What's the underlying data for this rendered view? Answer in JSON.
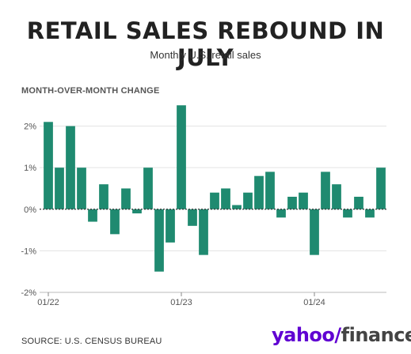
{
  "header": {
    "title": "RETAIL SALES REBOUND IN JULY",
    "subtitle": "Monthly U.S. retail sales"
  },
  "footer": {
    "source": "SOURCE: U.S. CENSUS BUREAU",
    "logo": "yahoo!finance"
  },
  "colors": {
    "bar": "#1f8a70",
    "grid": "#e3e3e3",
    "zero_line": "#333333"
  },
  "chart_data": {
    "type": "bar",
    "title": "RETAIL SALES REBOUND IN JULY",
    "subtitle": "Monthly U.S. retail sales",
    "ylabel": "MONTH-OVER-MONTH CHANGE",
    "xlabel": "",
    "categories": [
      "2022-01",
      "2022-02",
      "2022-03",
      "2022-04",
      "2022-05",
      "2022-06",
      "2022-07",
      "2022-08",
      "2022-09",
      "2022-10",
      "2022-11",
      "2022-12",
      "2023-01",
      "2023-02",
      "2023-03",
      "2023-04",
      "2023-05",
      "2023-06",
      "2023-07",
      "2023-08",
      "2023-09",
      "2023-10",
      "2023-11",
      "2023-12",
      "2024-01",
      "2024-02",
      "2024-03",
      "2024-04",
      "2024-05",
      "2024-06",
      "2024-07"
    ],
    "values": [
      2.1,
      1.0,
      2.0,
      1.0,
      -0.3,
      0.6,
      -0.6,
      0.5,
      -0.1,
      1.0,
      -1.5,
      -0.8,
      2.5,
      -0.4,
      -1.1,
      0.4,
      0.5,
      0.1,
      0.4,
      0.8,
      0.9,
      -0.2,
      0.3,
      0.4,
      -1.1,
      0.9,
      0.6,
      -0.2,
      0.3,
      -0.2,
      1.0
    ],
    "ylim": [
      -2,
      2.6
    ],
    "yticks": [
      -2,
      -1,
      0,
      1,
      2
    ],
    "ytick_labels": [
      "-2%",
      "-1%",
      "0%",
      "1%",
      "2%"
    ],
    "xticks": [
      "2022-01",
      "2023-01",
      "2024-01"
    ],
    "xtick_labels": [
      "01/22",
      "01/23",
      "01/24"
    ],
    "grid": true,
    "legend": "none"
  }
}
